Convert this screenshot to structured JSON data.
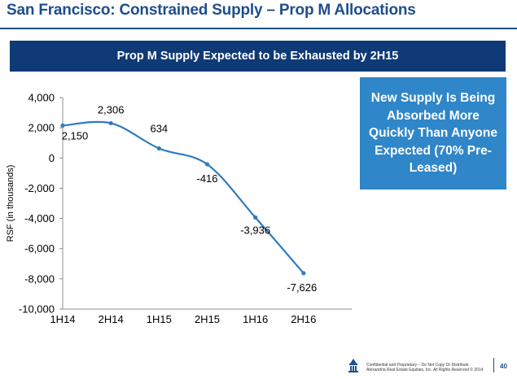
{
  "page": {
    "title": "San Francisco: Constrained Supply – Prop M Allocations",
    "banner": "Prop M Supply Expected to be Exhausted by 2H15",
    "callout": "New Supply Is Being Absorbed More Quickly Than Anyone Expected (70% Pre-Leased)",
    "footer_line1": "Confidential and Proprietary – Do Not Copy Or Distribute",
    "footer_line2": "Alexandria Real Estate Equities, Inc. All Rights Reserved © 2014",
    "page_number": "40"
  },
  "colors": {
    "title": "#1f4e8c",
    "banner_bg": "#0f3a75",
    "callout_bg": "#2f86c8",
    "series_line": "#2f7bbf"
  },
  "chart_data": {
    "type": "line",
    "categories": [
      "1H14",
      "2H14",
      "1H15",
      "2H15",
      "1H16",
      "2H16"
    ],
    "series": [
      {
        "values": [
          2150,
          2306,
          634,
          -416,
          -3936,
          -7626
        ]
      }
    ],
    "data_labels": [
      "2,150",
      "2,306",
      "634",
      "-416",
      "-3,936",
      "-7,626"
    ],
    "ylabel": "RSF (in thousands)",
    "xlabel": "",
    "ylim": [
      -10000,
      4000
    ],
    "y_ticks": [
      4000,
      2000,
      0,
      -2000,
      -4000,
      -6000,
      -8000,
      -10000
    ],
    "y_tick_labels": [
      "4,000",
      "2,000",
      "0",
      "-2,000",
      "-4,000",
      "-6,000",
      "-8,000",
      "-10,000"
    ],
    "grid": false,
    "smooth": true
  }
}
